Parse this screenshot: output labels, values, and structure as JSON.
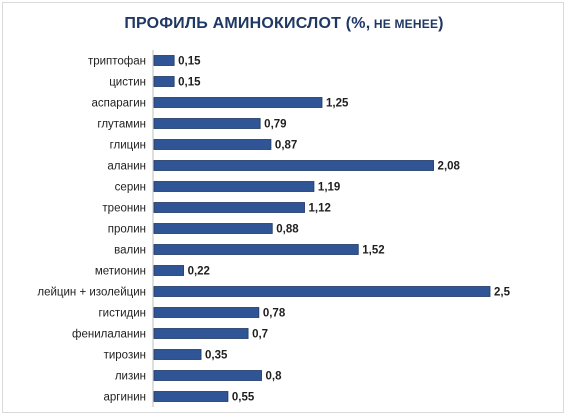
{
  "chart_data": {
    "type": "bar",
    "orientation": "horizontal",
    "title_main": "ПРОФИЛЬ АМИНОКИСЛОТ (%,",
    "title_small": " НЕ МЕНЕЕ",
    "title_close": ")",
    "categories": [
      "триптофан",
      "цистин",
      "аспарагин",
      "глутамин",
      "глицин",
      "аланин",
      "серин",
      "треонин",
      "пролин",
      "валин",
      "метионин",
      "лейцин + изолейцин",
      "гистидин",
      "фенилаланин",
      "тирозин",
      "лизин",
      "аргинин"
    ],
    "values": [
      0.15,
      0.15,
      1.25,
      0.79,
      0.87,
      2.08,
      1.19,
      1.12,
      0.88,
      1.52,
      0.22,
      2.5,
      0.78,
      0.7,
      0.35,
      0.8,
      0.55
    ],
    "value_labels": [
      "0,15",
      "0,15",
      "1,25",
      "0,79",
      "0,87",
      "2,08",
      "1,19",
      "1,12",
      "0,88",
      "1,52",
      "0,22",
      "2,5",
      "0,78",
      "0,7",
      "0,35",
      "0,8",
      "0,55"
    ],
    "xlim": [
      0,
      2.5
    ],
    "grid": false,
    "legend": "none",
    "bar_color": "#2f5597",
    "bar_border": "#1f3864"
  }
}
